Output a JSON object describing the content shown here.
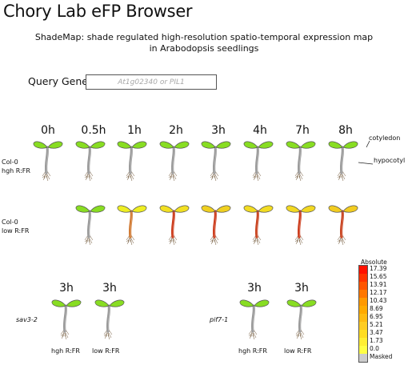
{
  "app": {
    "title": "Chory Lab eFP Browser"
  },
  "header": {
    "subtitle_line1": "ShadeMap: shade regulated high-resolution spatio-temporal expression map",
    "subtitle_line2": "in Arabodopsis seedlings"
  },
  "query": {
    "label": "Query Genes",
    "placeholder": "At1g02340 or PIL1",
    "value": ""
  },
  "annotations": {
    "cotyledon": "cotyledon",
    "hypocotyl": "hypocotyl"
  },
  "time_headers": [
    "0h",
    "0.5h",
    "1h",
    "2h",
    "3h",
    "4h",
    "7h",
    "8h"
  ],
  "rows": {
    "col0_high": {
      "label_line1": "Col-0",
      "label_line2": "hgh R:FR",
      "leaf_colors": [
        "#88dd22",
        "#88dd22",
        "#88dd22",
        "#88dd22",
        "#88dd22",
        "#88dd22",
        "#88dd22",
        "#88dd22"
      ],
      "stem_colors": [
        "#999999",
        "#999999",
        "#999999",
        "#999999",
        "#999999",
        "#999999",
        "#999999",
        "#999999"
      ]
    },
    "col0_low": {
      "label_line1": "Col-0",
      "label_line2": "low R:FR",
      "leaf_colors": [
        "#88dd22",
        "#eeee22",
        "#f2e022",
        "#f0d020",
        "#f2dc22",
        "#f2d822",
        "#f2cc20"
      ],
      "stem_colors": [
        "#999999",
        "#d07830",
        "#cc3a1a",
        "#cc3a1a",
        "#c8401c",
        "#cc3a1a",
        "#c8401c"
      ]
    }
  },
  "mutants": {
    "sav3": {
      "name": "sav3-2",
      "times": [
        "3h",
        "3h"
      ],
      "conditions": [
        "hgh R:FR",
        "low R:FR"
      ]
    },
    "pif7": {
      "name": "pif7-1",
      "times": [
        "3h",
        "3h"
      ],
      "conditions": [
        "hgh R:FR",
        "low R:FR"
      ]
    }
  },
  "legend": {
    "title": "Absolute",
    "values": [
      "17.39",
      "15.65",
      "13.91",
      "12.17",
      "10.43",
      "8.69",
      "6.95",
      "5.21",
      "3.47",
      "1.73",
      "0.0",
      "Masked"
    ],
    "colors": [
      "#ff1100",
      "#ff3300",
      "#ff5500",
      "#ff7700",
      "#ff9900",
      "#ffaa00",
      "#ffbb11",
      "#ffcc22",
      "#ffdd22",
      "#ffee33",
      "#ffff44",
      "#cccccc"
    ]
  }
}
